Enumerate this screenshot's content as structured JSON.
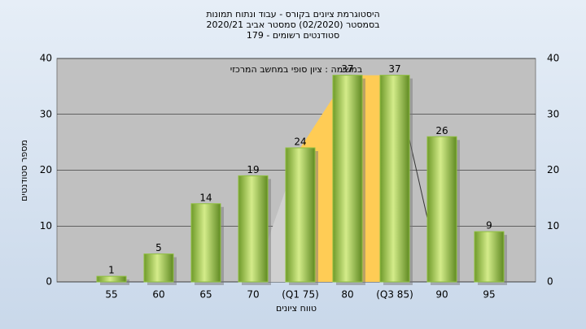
{
  "chart_data": {
    "type": "bar",
    "title": "היסטוגרמת ציונים בקורס - עבוד ונתוח תמונות",
    "subtitle": "בסמסטר  (02/2020)  סמסטר אביב 2020/21",
    "subtitle2": "סטודנטים רשומים - 179",
    "annotation": "במשימה : ציון סופי במחשב המרכזי",
    "x_label": "טווח ציונים",
    "y_label": "מספר סטודנטים",
    "categories": [
      "55",
      "60",
      "65",
      "70",
      "(Q1 75)",
      "80",
      "(Q3 85)",
      "90",
      "95"
    ],
    "values": [
      1,
      5,
      14,
      19,
      24,
      37,
      37,
      26,
      9
    ],
    "color": "#8fbf3f",
    "ylim": [
      0,
      40
    ],
    "yticks": [
      0,
      10,
      20,
      30,
      40
    ],
    "grid": true
  }
}
